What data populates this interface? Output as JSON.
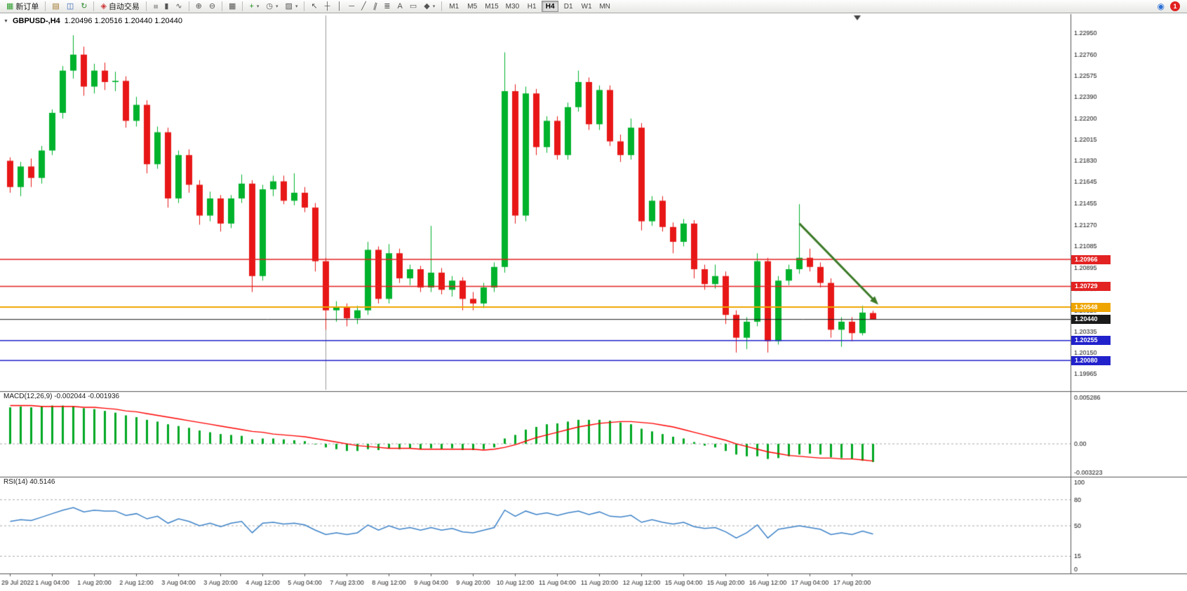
{
  "window": {
    "collapse_glyph": "▼",
    "title_symbol": "GBPUSD-,H4",
    "ohlc": "1.20496 1.20516 1.20440 1.20440"
  },
  "toolbar": {
    "groups": [
      {
        "items": [
          {
            "name": "new-order",
            "glyph": "▦",
            "glyph_color": "#2e9e2e",
            "label": "新订单"
          }
        ]
      },
      {
        "items": [
          {
            "name": "new-chart",
            "glyph": "▤",
            "glyph_color": "#a0752a"
          },
          {
            "name": "profiles",
            "glyph": "◫",
            "glyph_color": "#3565b5"
          },
          {
            "name": "refresh",
            "glyph": "↻",
            "glyph_color": "#2e8b2e"
          }
        ]
      },
      {
        "items": [
          {
            "name": "autotrading",
            "glyph": "◈",
            "glyph_color": "#cc3333",
            "label": "自动交易"
          }
        ]
      },
      {
        "items": [
          {
            "name": "bar-chart",
            "glyph": "≡",
            "rot": 90
          },
          {
            "name": "candlestick-chart",
            "glyph": "▮"
          },
          {
            "name": "line-chart",
            "glyph": "∿"
          }
        ]
      },
      {
        "items": [
          {
            "name": "zoom-in",
            "glyph": "⊕"
          },
          {
            "name": "zoom-out",
            "glyph": "⊖"
          }
        ]
      },
      {
        "items": [
          {
            "name": "tile-windows",
            "glyph": "▦"
          }
        ]
      },
      {
        "items": [
          {
            "name": "indicators",
            "glyph": "+",
            "glyph_color": "#1d8f1d",
            "caret": true
          },
          {
            "name": "periods",
            "glyph": "◷",
            "caret": true
          },
          {
            "name": "templates",
            "glyph": "▨",
            "caret": true
          }
        ]
      },
      {
        "items": [
          {
            "name": "cursor",
            "glyph": "↖"
          },
          {
            "name": "crosshair",
            "glyph": "┼"
          },
          {
            "name": "vertical-line",
            "glyph": "│"
          },
          {
            "name": "horizontal-line",
            "glyph": "─"
          },
          {
            "name": "trendline",
            "glyph": "╱"
          },
          {
            "name": "equidistant-channel",
            "glyph": "∥",
            "rot": 15
          },
          {
            "name": "fibonacci",
            "glyph": "≣"
          },
          {
            "name": "text",
            "glyph": "A"
          },
          {
            "name": "text-label",
            "glyph": "▭"
          },
          {
            "name": "shapes",
            "glyph": "◆",
            "caret": true
          }
        ]
      }
    ],
    "timeframes": {
      "items": [
        "M1",
        "M5",
        "M15",
        "M30",
        "H1",
        "H4",
        "D1",
        "W1",
        "MN"
      ],
      "active": "H4"
    },
    "right": {
      "community_glyph": "◉",
      "community_color": "#2a6fd6",
      "notification_count": "1"
    }
  },
  "chart_data": {
    "type": "candlestick",
    "symbol": "GBPUSD-",
    "timeframe": "H4",
    "current": {
      "open": "1.20496",
      "high": "1.20516",
      "low": "1.20440",
      "close": "1.20440"
    },
    "colors": {
      "up": "#00b22c",
      "down": "#e81717",
      "background": "#ffffff"
    },
    "price_axis_ticks": [
      "1.22950",
      "1.22760",
      "1.22575",
      "1.22390",
      "1.22200",
      "1.22015",
      "1.21830",
      "1.21645",
      "1.21455",
      "1.21270",
      "1.21085",
      "1.20895",
      "1.20710",
      "1.20520",
      "1.20335",
      "1.20150",
      "1.19965"
    ],
    "time_labels": [
      "29 Jul 2022",
      "1 Aug 04:00",
      "1 Aug 20:00",
      "2 Aug 12:00",
      "3 Aug 04:00",
      "3 Aug 20:00",
      "4 Aug 12:00",
      "5 Aug 04:00",
      "7 Aug 23:00",
      "8 Aug 12:00",
      "9 Aug 04:00",
      "9 Aug 20:00",
      "10 Aug 12:00",
      "11 Aug 04:00",
      "11 Aug 20:00",
      "12 Aug 12:00",
      "15 Aug 04:00",
      "15 Aug 20:00",
      "16 Aug 12:00",
      "17 Aug 04:00",
      "17 Aug 20:00"
    ],
    "candles": [
      [
        1.2183,
        1.2186,
        1.2155,
        1.216
      ],
      [
        1.216,
        1.2182,
        1.2152,
        1.2178
      ],
      [
        1.2178,
        1.2185,
        1.216,
        1.2168
      ],
      [
        1.2168,
        1.2196,
        1.2163,
        1.2192
      ],
      [
        1.2192,
        1.2228,
        1.2188,
        1.2225
      ],
      [
        1.2225,
        1.2266,
        1.222,
        1.2262
      ],
      [
        1.2262,
        1.2293,
        1.2255,
        1.2276
      ],
      [
        1.2276,
        1.2283,
        1.224,
        1.2248
      ],
      [
        1.2248,
        1.2268,
        1.2242,
        1.2262
      ],
      [
        1.2262,
        1.2269,
        1.2245,
        1.2252
      ],
      [
        1.2252,
        1.2261,
        1.2244,
        1.2253
      ],
      [
        1.2253,
        1.2257,
        1.2212,
        1.2218
      ],
      [
        1.2218,
        1.2239,
        1.2213,
        1.2232
      ],
      [
        1.2232,
        1.2236,
        1.2172,
        1.218
      ],
      [
        1.218,
        1.2213,
        1.2176,
        1.2208
      ],
      [
        1.2208,
        1.2212,
        1.2142,
        1.215
      ],
      [
        1.215,
        1.2192,
        1.2146,
        1.2188
      ],
      [
        1.2188,
        1.2193,
        1.2155,
        1.2162
      ],
      [
        1.2162,
        1.2166,
        1.2127,
        1.2135
      ],
      [
        1.2135,
        1.2156,
        1.213,
        1.215
      ],
      [
        1.215,
        1.2153,
        1.2121,
        1.2128
      ],
      [
        1.2128,
        1.2153,
        1.2124,
        1.215
      ],
      [
        1.215,
        1.2171,
        1.2146,
        1.2163
      ],
      [
        1.2163,
        1.2166,
        1.2068,
        1.2082
      ],
      [
        1.2082,
        1.2162,
        1.2078,
        1.2158
      ],
      [
        1.2158,
        1.217,
        1.2152,
        1.2165
      ],
      [
        1.2165,
        1.217,
        1.2145,
        1.2148
      ],
      [
        1.2148,
        1.2172,
        1.2144,
        1.2155
      ],
      [
        1.2155,
        1.216,
        1.2138,
        1.2142
      ],
      [
        1.2142,
        1.2146,
        1.2086,
        1.2095
      ],
      [
        1.2095,
        1.2098,
        1.2035,
        1.2052
      ],
      [
        1.2052,
        1.206,
        1.2042,
        1.2055
      ],
      [
        1.2055,
        1.2058,
        1.2038,
        1.2045
      ],
      [
        1.2045,
        1.2056,
        1.204,
        1.2052
      ],
      [
        1.2052,
        1.2112,
        1.2048,
        1.2105
      ],
      [
        1.2105,
        1.2108,
        1.2058,
        1.2062
      ],
      [
        1.2062,
        1.211,
        1.2058,
        1.2102
      ],
      [
        1.2102,
        1.2106,
        1.2076,
        1.208
      ],
      [
        1.208,
        1.2092,
        1.2074,
        1.2088
      ],
      [
        1.2088,
        1.2091,
        1.2068,
        1.2072
      ],
      [
        1.2072,
        1.2126,
        1.2068,
        1.2085
      ],
      [
        1.2085,
        1.2089,
        1.2066,
        1.207
      ],
      [
        1.207,
        1.2082,
        1.2064,
        1.2078
      ],
      [
        1.2078,
        1.2081,
        1.2052,
        1.2062
      ],
      [
        1.2062,
        1.2068,
        1.2052,
        1.2058
      ],
      [
        1.2058,
        1.2076,
        1.2054,
        1.2072
      ],
      [
        1.2072,
        1.2094,
        1.2068,
        1.209
      ],
      [
        1.209,
        1.2278,
        1.2085,
        1.2244
      ],
      [
        1.2244,
        1.225,
        1.2128,
        1.2135
      ],
      [
        1.2135,
        1.2248,
        1.213,
        1.2242
      ],
      [
        1.2242,
        1.2246,
        1.2188,
        1.2195
      ],
      [
        1.2195,
        1.2222,
        1.219,
        1.2218
      ],
      [
        1.2218,
        1.2222,
        1.2184,
        1.2188
      ],
      [
        1.2188,
        1.2234,
        1.2184,
        1.223
      ],
      [
        1.223,
        1.2262,
        1.2226,
        1.2252
      ],
      [
        1.2252,
        1.2256,
        1.221,
        1.2215
      ],
      [
        1.2215,
        1.2249,
        1.221,
        1.2245
      ],
      [
        1.2245,
        1.2249,
        1.2196,
        1.22
      ],
      [
        1.22,
        1.2206,
        1.2182,
        1.2188
      ],
      [
        1.2188,
        1.222,
        1.2184,
        1.2212
      ],
      [
        1.2212,
        1.2216,
        1.2122,
        1.213
      ],
      [
        1.213,
        1.2152,
        1.2126,
        1.2148
      ],
      [
        1.2148,
        1.2152,
        1.2121,
        1.2125
      ],
      [
        1.2125,
        1.2129,
        1.2102,
        1.2112
      ],
      [
        1.2112,
        1.2132,
        1.2108,
        1.2128
      ],
      [
        1.2128,
        1.2131,
        1.208,
        1.2088
      ],
      [
        1.2088,
        1.2092,
        1.207,
        1.2075
      ],
      [
        1.2075,
        1.2092,
        1.2071,
        1.2082
      ],
      [
        1.2082,
        1.2086,
        1.204,
        1.2048
      ],
      [
        1.2048,
        1.2052,
        1.2015,
        1.2028
      ],
      [
        1.2028,
        1.2046,
        1.2018,
        1.2042
      ],
      [
        1.2042,
        1.2102,
        1.2038,
        1.2095
      ],
      [
        1.2095,
        1.2098,
        1.2015,
        1.2025
      ],
      [
        1.2025,
        1.2082,
        1.2022,
        1.2078
      ],
      [
        1.2078,
        1.2092,
        1.2074,
        1.2088
      ],
      [
        1.2088,
        1.2145,
        1.2084,
        1.2098
      ],
      [
        1.2098,
        1.2106,
        1.2086,
        1.209
      ],
      [
        1.209,
        1.2094,
        1.2072,
        1.2076
      ],
      [
        1.2076,
        1.208,
        1.2028,
        1.2035
      ],
      [
        1.2035,
        1.2046,
        1.202,
        1.2042
      ],
      [
        1.2042,
        1.2046,
        1.2025,
        1.2032
      ],
      [
        1.2032,
        1.2056,
        1.203,
        1.205
      ],
      [
        1.20496,
        1.20516,
        1.2044,
        1.2044
      ]
    ],
    "hlines": [
      {
        "price": 1.20966,
        "label": "1.20966",
        "color": "#e32222",
        "width": 1.5
      },
      {
        "price": 1.20729,
        "label": "1.20729",
        "color": "#e32222",
        "width": 1.5
      },
      {
        "price": 1.20548,
        "label": "1.20548",
        "color": "#efa500",
        "width": 2
      },
      {
        "price": 1.2044,
        "label": "1.20440",
        "color": "#1a1a1a",
        "width": 1
      },
      {
        "price": 1.20255,
        "label": "1.20255",
        "color": "#2222cc",
        "width": 1.5
      },
      {
        "price": 1.2008,
        "label": "1.20080",
        "color": "#2222cc",
        "width": 1.5
      }
    ],
    "vline_index": 30,
    "shift_marker_index": 80.5,
    "arrow": {
      "from": {
        "index": 75,
        "price": 1.2128
      },
      "to": {
        "index": 82.5,
        "price": 1.2057
      },
      "color": "#3c7a28"
    },
    "indicators": {
      "macd": {
        "label": "MACD(12,26,9)",
        "values": "-0.002044 -0.001936",
        "axis_labels": [
          "0.005286",
          "0.00",
          "-0.003223"
        ],
        "max": 0.005286,
        "min": -0.003223,
        "histogram_color": "#00a822",
        "signal_color": "#ff0000",
        "histogram": [
          0.0041,
          0.0042,
          0.0041,
          0.0042,
          0.0043,
          0.0043,
          0.0042,
          0.004,
          0.0039,
          0.0037,
          0.0035,
          0.0032,
          0.003,
          0.0027,
          0.0025,
          0.0022,
          0.002,
          0.0018,
          0.0015,
          0.0013,
          0.0011,
          0.001,
          0.0009,
          0.0005,
          0.0006,
          0.0006,
          0.0005,
          0.0004,
          0.0003,
          0.0,
          -0.0004,
          -0.0006,
          -0.0008,
          -0.0008,
          -0.0006,
          -0.0007,
          -0.0005,
          -0.0006,
          -0.0005,
          -0.0006,
          -0.0005,
          -0.0006,
          -0.0005,
          -0.0007,
          -0.0007,
          -0.0006,
          -0.0004,
          0.0006,
          0.001,
          0.0016,
          0.0019,
          0.0022,
          0.0023,
          0.0025,
          0.0027,
          0.0027,
          0.0027,
          0.0026,
          0.0024,
          0.0022,
          0.0017,
          0.0014,
          0.0011,
          0.0008,
          0.0006,
          0.0002,
          -0.0002,
          -0.0004,
          -0.0008,
          -0.0012,
          -0.0014,
          -0.0014,
          -0.0017,
          -0.0016,
          -0.0014,
          -0.0012,
          -0.0011,
          -0.0012,
          -0.0015,
          -0.0016,
          -0.0017,
          -0.0019,
          -0.002044
        ],
        "signal": [
          0.0043,
          0.0043,
          0.0043,
          0.0042,
          0.0042,
          0.0042,
          0.0042,
          0.0041,
          0.0041,
          0.004,
          0.0039,
          0.0037,
          0.0036,
          0.0034,
          0.0032,
          0.003,
          0.0028,
          0.0026,
          0.0024,
          0.0022,
          0.002,
          0.0018,
          0.0016,
          0.0014,
          0.0013,
          0.0011,
          0.001,
          0.0009,
          0.0008,
          0.0006,
          0.0004,
          0.0002,
          0.0,
          -0.0002,
          -0.0003,
          -0.0004,
          -0.0005,
          -0.0005,
          -0.0005,
          -0.0006,
          -0.0006,
          -0.0006,
          -0.0006,
          -0.0006,
          -0.0006,
          -0.0007,
          -0.0006,
          -0.0004,
          -0.0001,
          0.0003,
          0.0007,
          0.001,
          0.0013,
          0.0016,
          0.0019,
          0.0021,
          0.0023,
          0.0024,
          0.0025,
          0.0025,
          0.0024,
          0.0023,
          0.0021,
          0.0019,
          0.0016,
          0.0013,
          0.001,
          0.0007,
          0.0004,
          0.0,
          -0.0003,
          -0.0006,
          -0.0009,
          -0.0011,
          -0.0013,
          -0.0014,
          -0.0015,
          -0.0016,
          -0.0016,
          -0.0017,
          -0.0017,
          -0.0018,
          -0.001936
        ]
      },
      "rsi": {
        "label": "RSI(14)",
        "value": "40.5146",
        "axis_labels": [
          "100",
          "80",
          "50",
          "15",
          "0"
        ],
        "levels": [
          80,
          50,
          15
        ],
        "line_color": "#3c82c8",
        "series": [
          55,
          57,
          56,
          60,
          64,
          68,
          71,
          66,
          68,
          67,
          67,
          62,
          64,
          58,
          61,
          53,
          58,
          55,
          50,
          53,
          49,
          53,
          55,
          42,
          53,
          54,
          52,
          53,
          51,
          45,
          40,
          42,
          40,
          42,
          51,
          45,
          50,
          46,
          48,
          45,
          48,
          45,
          47,
          43,
          42,
          45,
          48,
          68,
          61,
          67,
          63,
          65,
          62,
          65,
          67,
          63,
          66,
          61,
          60,
          62,
          54,
          57,
          54,
          52,
          54,
          49,
          47,
          48,
          43,
          36,
          42,
          51,
          36,
          46,
          48,
          50,
          48,
          46,
          40,
          42,
          40,
          44,
          40.5
        ]
      }
    }
  }
}
